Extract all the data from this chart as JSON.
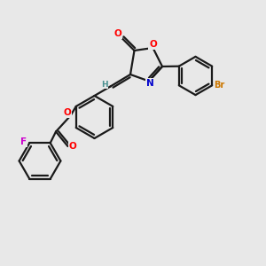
{
  "background_color": "#e8e8e8",
  "bond_color": "#1a1a1a",
  "atom_colors": {
    "O": "#ff0000",
    "N": "#0000cc",
    "Br": "#cc7700",
    "F": "#cc00cc",
    "C": "#1a1a1a",
    "H": "#4a9090"
  },
  "figsize": [
    3.0,
    3.0
  ],
  "dpi": 100,
  "xlim": [
    0,
    10
  ],
  "ylim": [
    0,
    10
  ]
}
